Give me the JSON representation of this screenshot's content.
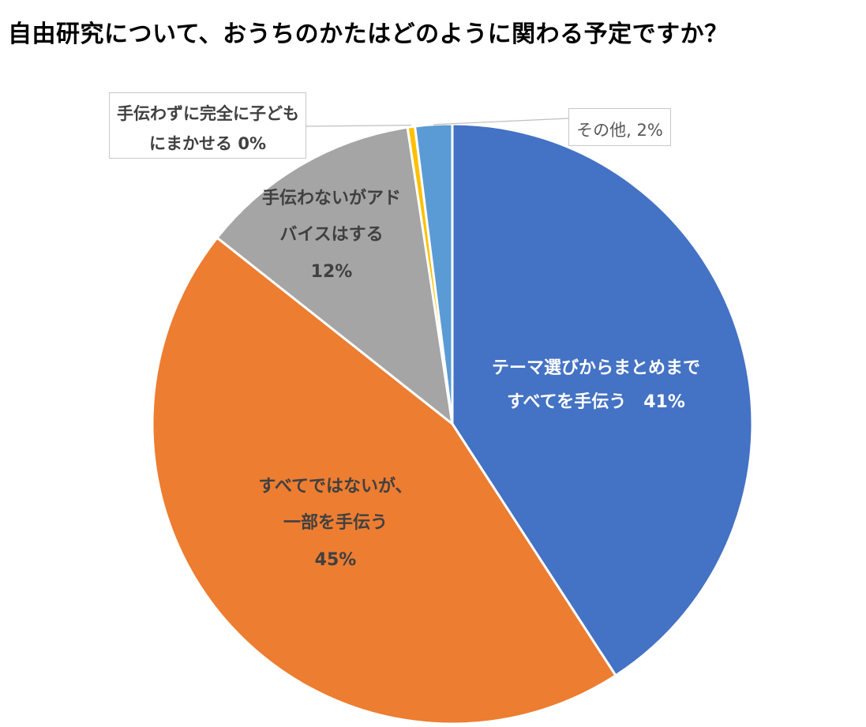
{
  "chart_data": {
    "type": "pie",
    "title": "自由研究について、おうちのかたはどのように関わる予定ですか？",
    "slices": [
      {
        "label_lines": [
          "テーマ選びからまとめまで",
          "すべてを手伝う　41%"
        ],
        "value": 41,
        "color": "#4472c4"
      },
      {
        "label_lines": [
          "すべてではないが、",
          "一部を手伝う",
          "45%"
        ],
        "value": 45,
        "color": "#ed7d31"
      },
      {
        "label_lines": [
          "手伝わないがアド",
          "バイスはする",
          "12%"
        ],
        "value": 12,
        "color": "#a5a5a5"
      },
      {
        "label_lines": [
          "手伝わずに完全に子ども",
          "にまかせる 0%"
        ],
        "value": 0.4,
        "color": "#ffc000"
      },
      {
        "label_lines": [
          "その他, 2%"
        ],
        "value": 2,
        "color": "#5b9bd5"
      }
    ],
    "start_angle_deg": 0,
    "direction": "clockwise",
    "legend": "none",
    "label_colors": {
      "inside_on_blue": "#ffffff",
      "inside_on_gray_orange": "#404040",
      "callout": "#404040",
      "callout_light": "#595959",
      "leader": "#bfbfbf"
    }
  }
}
